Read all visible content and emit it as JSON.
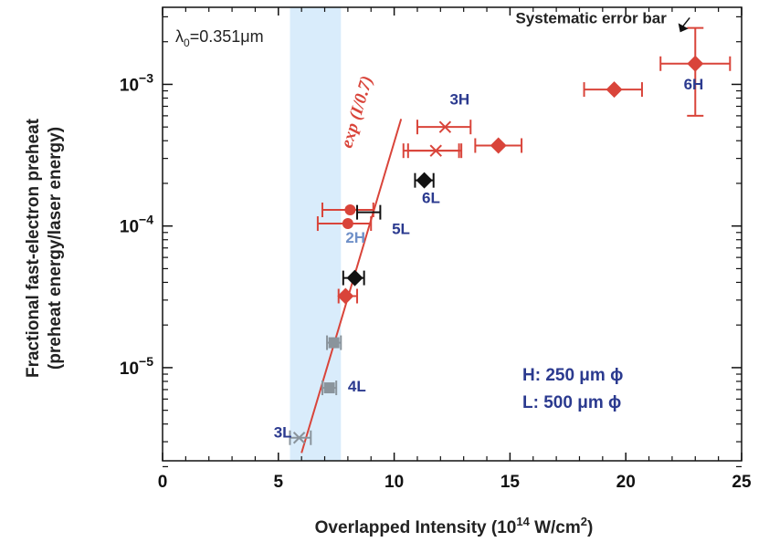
{
  "chart_data": {
    "type": "scatter",
    "x_axis": {
      "label_main": "Overlapped Intensity (10",
      "label_sup": "14",
      "label_unit": " W/cm",
      "label_unit_sup": "2",
      "label_close": ")",
      "min": 0,
      "max": 25,
      "ticks": [
        0,
        5,
        10,
        15,
        20,
        25
      ],
      "tick_labels": [
        "0",
        "5",
        "10",
        "15",
        "20",
        "25"
      ]
    },
    "y_axis": {
      "label_line1": "Fractional fast-electron preheat",
      "label_line2": "(preheat energy/laser energy)",
      "scale": "log",
      "min": 2.2e-06,
      "max": 0.0035,
      "ticks": [
        1e-05,
        0.0001,
        0.001
      ],
      "tick_base": "10",
      "tick_exponents": [
        "−5",
        "−4",
        "−3"
      ],
      "minor_ticks": [
        2e-06,
        3e-06,
        4e-06,
        5e-06,
        6e-06,
        7e-06,
        8e-06,
        9e-06,
        2e-05,
        3e-05,
        4e-05,
        5e-05,
        6e-05,
        7e-05,
        8e-05,
        9e-05,
        0.0002,
        0.0003,
        0.0004,
        0.0005,
        0.0006,
        0.0007,
        0.0008,
        0.0009,
        0.002,
        0.003
      ]
    },
    "band": {
      "x_from": 5.5,
      "x_to": 7.7,
      "color": "#d9ecfb"
    },
    "wavelength": {
      "symbol": "λ",
      "sub": "0",
      "value": "=0.351",
      "unit": "μm"
    },
    "fit": {
      "label": "exp (I/0.7)",
      "x_from": 6.0,
      "x_to": 10.3,
      "y_from": 2.5e-06,
      "y_to": 0.00057,
      "color": "#d9443a"
    },
    "series": [
      {
        "marker": "diamond",
        "color": "#d9443a",
        "points": [
          {
            "x": 7.9,
            "y": 3.2e-05,
            "xerr": [
              7.6,
              8.4
            ]
          },
          {
            "x": 14.5,
            "y": 0.00037,
            "xerr": [
              13.5,
              15.5
            ]
          },
          {
            "x": 19.5,
            "y": 0.00092,
            "xerr": [
              18.2,
              20.7
            ]
          },
          {
            "x": 23.0,
            "y": 0.0014,
            "xerr": [
              21.5,
              24.5
            ],
            "yerr": [
              0.0006,
              0.0025
            ]
          }
        ]
      },
      {
        "marker": "circle",
        "color": "#d9443a",
        "points": [
          {
            "x": 8.1,
            "y": 0.00013,
            "xerr": [
              6.9,
              9.1
            ]
          },
          {
            "x": 8.0,
            "y": 0.000104,
            "xerr": [
              6.7,
              9.0
            ]
          }
        ]
      },
      {
        "marker": "x",
        "color": "#d9443a",
        "points": [
          {
            "x": 12.2,
            "y": 0.0005,
            "xerr": [
              11.0,
              13.3
            ]
          },
          {
            "x": 11.8,
            "y": 0.00034,
            "xerr": [
              10.6,
              12.9
            ]
          }
        ]
      },
      {
        "marker": "open-bracket",
        "color": "#d9443a",
        "points": [
          {
            "x": 11.6,
            "y": 0.00034,
            "xerr": [
              10.4,
              12.8
            ]
          }
        ]
      },
      {
        "marker": "diamond",
        "color": "#111111",
        "points": [
          {
            "x": 8.3,
            "y": 4.3e-05,
            "xerr": [
              7.8,
              8.7
            ]
          },
          {
            "x": 11.3,
            "y": 0.00021,
            "xerr": [
              10.9,
              11.7
            ]
          }
        ]
      },
      {
        "marker": "open-bracket",
        "color": "#111111",
        "points": [
          {
            "x": 8.8,
            "y": 0.000125,
            "xerr": [
              8.4,
              9.4
            ]
          }
        ]
      },
      {
        "marker": "square",
        "color": "#8a949c",
        "points": [
          {
            "x": 7.4,
            "y": 1.5e-05,
            "xerr": [
              7.1,
              7.7
            ]
          },
          {
            "x": 7.2,
            "y": 7.2e-06,
            "xerr": [
              6.9,
              7.5
            ]
          }
        ]
      },
      {
        "marker": "x",
        "color": "#8a949c",
        "points": [
          {
            "x": 5.9,
            "y": 3.2e-06,
            "xerr": [
              5.5,
              6.4
            ]
          }
        ]
      }
    ],
    "point_labels": [
      {
        "text": "6H",
        "x": 22.5,
        "y": 0.00092,
        "color": "#2b3a8f"
      },
      {
        "text": "3H",
        "x": 12.4,
        "y": 0.00072,
        "color": "#2b3a8f"
      },
      {
        "text": "6L",
        "x": 11.2,
        "y": 0.000145,
        "color": "#2b3a8f"
      },
      {
        "text": "5L",
        "x": 9.9,
        "y": 8.8e-05,
        "color": "#2b3a8f"
      },
      {
        "text": "2H",
        "x": 7.9,
        "y": 7.6e-05,
        "color": "#6f90c8"
      },
      {
        "text": "4L",
        "x": 8.0,
        "y": 6.8e-06,
        "color": "#2b3a8f"
      },
      {
        "text": "3L",
        "x": 4.8,
        "y": 3.2e-06,
        "color": "#2b3a8f"
      }
    ],
    "annotation": {
      "text": "Systematic error bar",
      "x": 18.5,
      "y": 0.0024
    },
    "legend": {
      "lines": [
        "H: 250 μm ϕ",
        "L: 500 μm ϕ"
      ],
      "position": "bottom-right"
    }
  }
}
